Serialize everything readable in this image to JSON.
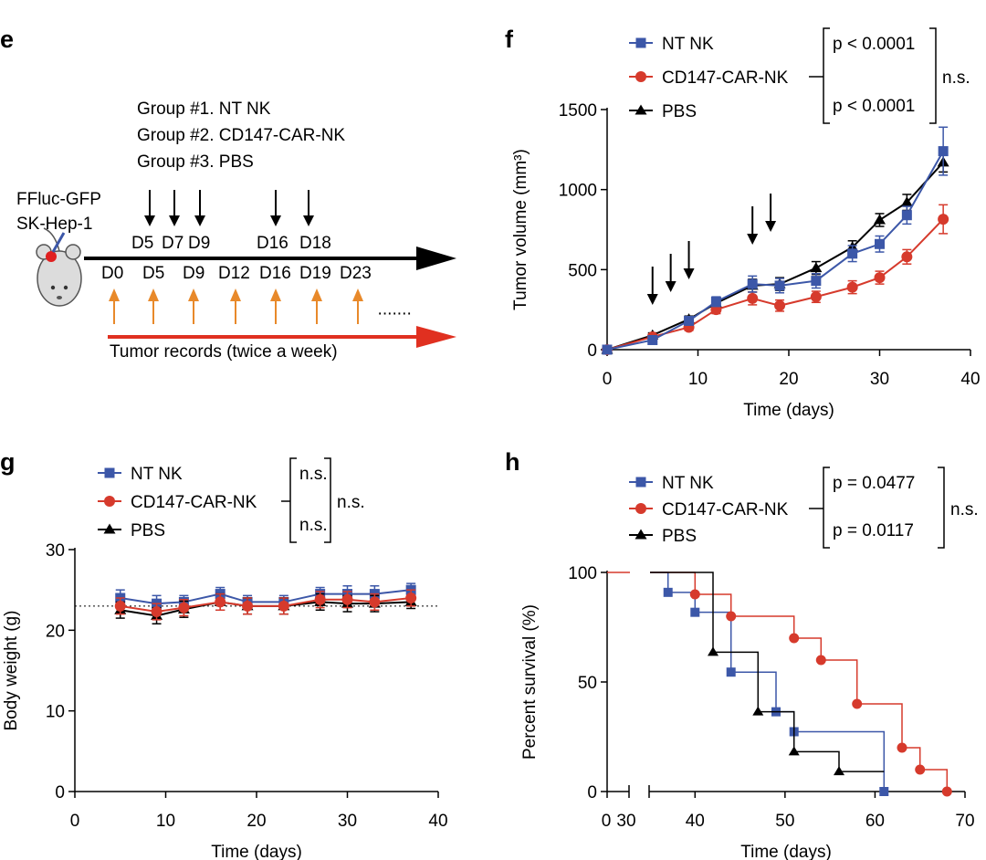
{
  "colors": {
    "nt": "#3c57a8",
    "car": "#d63a2c",
    "pbs": "#000000",
    "arrow_orange": "#e8892a",
    "arrow_red": "#e03020"
  },
  "panel_e": {
    "letter": "e",
    "groups": [
      "Group #1. NT NK",
      "Group #2. CD147-CAR-NK",
      "Group #3. PBS"
    ],
    "mouse_label": [
      "FFluc-GFP",
      "SK-Hep-1"
    ],
    "treatment_days": [
      "D5",
      "D7",
      "D9",
      "D16",
      "D18"
    ],
    "record_days": [
      "D0",
      "D5",
      "D9",
      "D12",
      "D16",
      "D19",
      "D23"
    ],
    "ellipsis": "·······",
    "records_label": "Tumor records (twice a week)"
  },
  "chart_data": [
    {
      "panel": "f",
      "type": "line",
      "xlabel": "Time (days)",
      "ylabel": "Tumor volume (mm³)",
      "xlim": [
        0,
        40
      ],
      "ylim": [
        0,
        1500
      ],
      "xticks": [
        0,
        10,
        20,
        30,
        40
      ],
      "yticks": [
        0,
        500,
        1000,
        1500
      ],
      "treatment_arrows_days": [
        5,
        7,
        9,
        16,
        18
      ],
      "legend": [
        {
          "name": "NT NK",
          "marker": "square",
          "color": "#3c57a8"
        },
        {
          "name": "CD147-CAR-NK",
          "marker": "circle",
          "color": "#d63a2c"
        },
        {
          "name": "PBS",
          "marker": "triangle",
          "color": "#000000"
        }
      ],
      "stats": {
        "p1": "p < 0.0001",
        "p2": "p < 0.0001",
        "outer": "n.s."
      },
      "series": [
        {
          "name": "NT NK",
          "x": [
            0,
            5,
            9,
            12,
            16,
            19,
            23,
            27,
            30,
            33,
            37
          ],
          "y": [
            0,
            60,
            180,
            300,
            410,
            400,
            430,
            600,
            660,
            840,
            1240
          ],
          "err": [
            5,
            15,
            25,
            30,
            50,
            45,
            45,
            50,
            50,
            55,
            150
          ]
        },
        {
          "name": "CD147-CAR-NK",
          "x": [
            0,
            5,
            9,
            12,
            16,
            19,
            23,
            27,
            30,
            33,
            37
          ],
          "y": [
            0,
            80,
            140,
            250,
            320,
            275,
            330,
            390,
            450,
            580,
            815
          ],
          "err": [
            5,
            15,
            20,
            25,
            40,
            35,
            35,
            40,
            40,
            45,
            90
          ]
        },
        {
          "name": "PBS",
          "x": [
            0,
            5,
            9,
            12,
            16,
            19,
            23,
            27,
            30,
            33,
            37
          ],
          "y": [
            0,
            90,
            190,
            290,
            400,
            410,
            510,
            640,
            810,
            920,
            1170
          ],
          "err": [
            5,
            15,
            20,
            25,
            40,
            40,
            40,
            40,
            40,
            50,
            60
          ]
        }
      ]
    },
    {
      "panel": "g",
      "type": "line",
      "xlabel": "Time (days)",
      "ylabel": "Body weight (g)",
      "xlim": [
        0,
        40
      ],
      "ylim": [
        0,
        30
      ],
      "xticks": [
        0,
        10,
        20,
        30,
        40
      ],
      "yticks": [
        0,
        10,
        20,
        30
      ],
      "reference_line_y": 23,
      "legend": [
        {
          "name": "NT NK",
          "marker": "square",
          "color": "#3c57a8"
        },
        {
          "name": "CD147-CAR-NK",
          "marker": "circle",
          "color": "#d63a2c"
        },
        {
          "name": "PBS",
          "marker": "triangle",
          "color": "#000000"
        }
      ],
      "stats": {
        "p1": "n.s.",
        "p2": "n.s.",
        "outer": "n.s."
      },
      "series": [
        {
          "name": "NT NK",
          "x": [
            5,
            9,
            12,
            16,
            19,
            23,
            27,
            30,
            33,
            37
          ],
          "y": [
            24,
            23.3,
            23.5,
            24.5,
            23.5,
            23.5,
            24.5,
            24.5,
            24.5,
            25
          ],
          "err": [
            1,
            1,
            0.8,
            0.8,
            0.8,
            0.8,
            0.8,
            1,
            1,
            0.8
          ]
        },
        {
          "name": "CD147-CAR-NK",
          "x": [
            5,
            9,
            12,
            16,
            19,
            23,
            27,
            30,
            33,
            37
          ],
          "y": [
            23,
            22.3,
            22.8,
            23.5,
            23,
            23,
            23.8,
            23.8,
            23.5,
            24
          ],
          "err": [
            1,
            1,
            1,
            1,
            1,
            1,
            1,
            1,
            1,
            1
          ]
        },
        {
          "name": "PBS",
          "x": [
            5,
            9,
            12,
            16,
            19,
            23,
            27,
            30,
            33,
            37
          ],
          "y": [
            22.5,
            21.8,
            22.6,
            23.5,
            23,
            23,
            23.5,
            23.3,
            23.3,
            23.5
          ],
          "err": [
            1,
            1,
            1,
            1,
            1,
            1,
            1,
            1,
            1,
            0.8
          ]
        }
      ]
    },
    {
      "panel": "h",
      "type": "line",
      "xlabel": "Time (days)",
      "ylabel": "Percent survival (%)",
      "xlim": [
        0,
        70
      ],
      "ylim": [
        0,
        100
      ],
      "axis_break": [
        30,
        35
      ],
      "xticks": [
        30,
        40,
        50,
        60,
        70
      ],
      "yticks": [
        0,
        50,
        100
      ],
      "legend": [
        {
          "name": "NT NK",
          "marker": "square",
          "color": "#3c57a8"
        },
        {
          "name": "CD147-CAR-NK",
          "marker": "circle",
          "color": "#d63a2c"
        },
        {
          "name": "PBS",
          "marker": "triangle",
          "color": "#000000"
        }
      ],
      "stats": {
        "p1": "p = 0.0477",
        "p2": "p = 0.0117",
        "outer": "n.s."
      },
      "series": [
        {
          "name": "NT NK",
          "step": true,
          "x": [
            35,
            37,
            40,
            44,
            49,
            51,
            61
          ],
          "y": [
            100,
            90.9,
            81.8,
            54.5,
            36.4,
            27.3,
            0
          ]
        },
        {
          "name": "CD147-CAR-NK",
          "step": true,
          "x": [
            35,
            40,
            44,
            51,
            54,
            58,
            63,
            65,
            68
          ],
          "y": [
            100,
            90,
            80,
            70,
            60,
            40,
            20,
            10,
            0
          ]
        },
        {
          "name": "PBS",
          "step": true,
          "x": [
            35,
            42,
            47,
            51,
            56,
            61
          ],
          "y": [
            100,
            63.6,
            36.4,
            18.2,
            9.1,
            9.1
          ]
        }
      ]
    }
  ]
}
